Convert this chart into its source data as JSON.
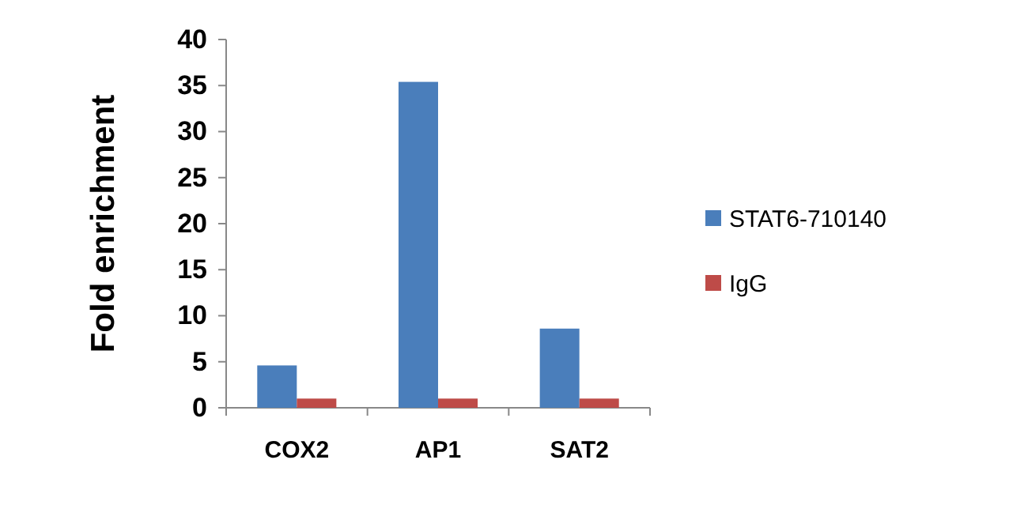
{
  "chart_data": {
    "type": "bar",
    "ylabel": "Fold enrichment",
    "categories": [
      "COX2",
      "AP1",
      "SAT2"
    ],
    "series": [
      {
        "name": "STAT6-710140",
        "color": "#4a7ebb",
        "values": [
          4.6,
          35.4,
          8.6
        ]
      },
      {
        "name": "IgG",
        "color": "#be4b48",
        "values": [
          1.0,
          1.0,
          1.0
        ]
      }
    ],
    "ylim": [
      0,
      40
    ],
    "yticks": [
      0,
      5,
      10,
      15,
      20,
      25,
      30,
      35,
      40
    ],
    "grid": false,
    "legend": "right"
  }
}
